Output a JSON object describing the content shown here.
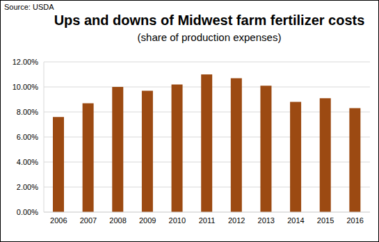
{
  "chart_data": {
    "type": "bar",
    "title": "Ups and downs of Midwest farm fertilizer costs",
    "subtitle": "(share of production expenses)",
    "source": "Source: USDA",
    "categories": [
      "2006",
      "2007",
      "2008",
      "2009",
      "2010",
      "2011",
      "2012",
      "2013",
      "2014",
      "2015",
      "2016"
    ],
    "values": [
      7.6,
      8.7,
      10.0,
      9.7,
      10.2,
      11.0,
      10.7,
      10.1,
      8.8,
      9.1,
      8.3
    ],
    "color": "#9c4a12",
    "ylim": [
      0,
      12
    ],
    "yticks": [
      {
        "value": 0,
        "label": "0.00%"
      },
      {
        "value": 2,
        "label": "2.00%"
      },
      {
        "value": 4,
        "label": "4.00%"
      },
      {
        "value": 6,
        "label": "6.00%"
      },
      {
        "value": 8,
        "label": "8.00%"
      },
      {
        "value": 10,
        "label": "10.00%"
      },
      {
        "value": 12,
        "label": "12.00%"
      }
    ],
    "grid": true
  }
}
